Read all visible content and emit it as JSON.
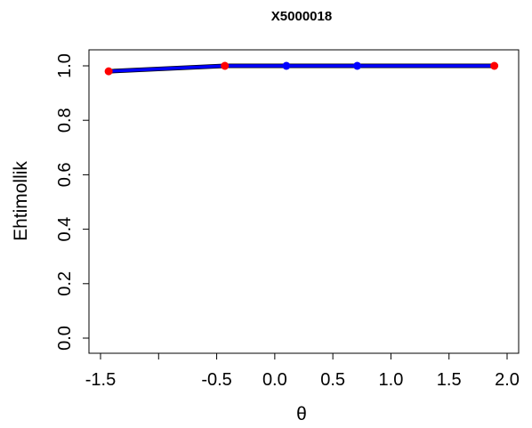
{
  "chart_data": {
    "type": "line",
    "title": "X5000018",
    "xlabel": "θ",
    "ylabel": "Ehtimollik",
    "xlim": [
      -1.5,
      2.0
    ],
    "ylim": [
      0.0,
      1.0
    ],
    "x_ticks": [
      -1.5,
      -1.0,
      -0.5,
      0.0,
      0.5,
      1.0,
      1.5,
      2.0
    ],
    "x_tick_labels": [
      "-1.5",
      "",
      "-0.5",
      "0.0",
      "0.5",
      "1.0",
      "1.5",
      "2.0"
    ],
    "y_ticks": [
      0.0,
      0.2,
      0.4,
      0.6,
      0.8,
      1.0
    ],
    "y_tick_labels": [
      "0.0",
      "0.2",
      "0.4",
      "0.6",
      "0.8",
      "1.0"
    ],
    "grid": false,
    "series": [
      {
        "color": "#0000ff",
        "style": "line",
        "x": [
          -1.43,
          -0.43,
          0.1,
          0.71,
          1.89
        ],
        "y": [
          0.98,
          1.0,
          1.0,
          1.0,
          1.0
        ]
      },
      {
        "color": "#ff0000",
        "style": "points",
        "x": [
          -1.43,
          -0.43,
          1.89
        ],
        "y": [
          0.98,
          1.0,
          1.0
        ]
      },
      {
        "color": "#0000ff",
        "style": "points",
        "x": [
          0.1,
          0.71
        ],
        "y": [
          1.0,
          1.0
        ]
      }
    ]
  }
}
